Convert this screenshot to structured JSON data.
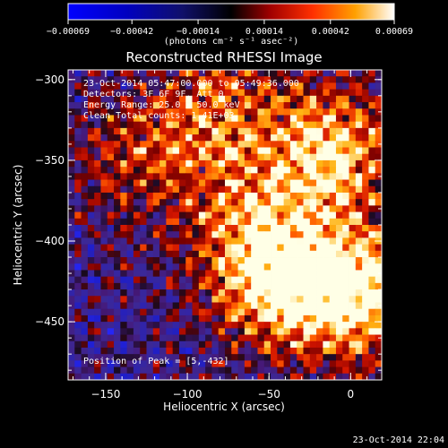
{
  "colorbar": {
    "tick_labels": [
      "-0.00069",
      "-0.00042",
      "-0.00014",
      "0.00014",
      "0.00042",
      "0.00069"
    ],
    "unit_label": "(photons cm⁻² s⁻¹ asec⁻²)",
    "range": [
      -0.00069,
      0.00069
    ]
  },
  "chart_data": {
    "type": "heatmap",
    "title": "Reconstructed RHESSI Image",
    "xlabel": "Heliocentric X (arcsec)",
    "ylabel": "Heliocentric Y (arcsec)",
    "xlim": [
      -173,
      19
    ],
    "ylim": [
      -486,
      -294
    ],
    "x_ticks": [
      -150,
      -100,
      -50,
      0
    ],
    "y_ticks": [
      -300,
      -350,
      -400,
      -450
    ],
    "x_tick_labels": [
      "−150",
      "−100",
      "−50",
      "0"
    ],
    "y_tick_labels": [
      "−300",
      "−350",
      "−400",
      "−450"
    ],
    "annotations": [
      "23-Oct-2014 05:47:00.000 to 05:49:36.000",
      "Detectors: 3F 6F 9F, Att 0",
      "Energy Range: 25.0 - 50.0 keV",
      "Clean     Total counts: 1.41E+03"
    ],
    "peak_label": "Position of Peak = [5,-432]",
    "peak": [
      5,
      -432
    ],
    "hot_regions": [
      {
        "x": -45,
        "y": -425,
        "level": 1.0
      },
      {
        "x": 5,
        "y": -432,
        "level": 1.0
      },
      {
        "x": -10,
        "y": -345,
        "level": 0.9
      },
      {
        "x": -80,
        "y": -320,
        "level": 0.6
      },
      {
        "x": -130,
        "y": -350,
        "level": 0.45
      },
      {
        "x": -60,
        "y": -385,
        "level": 0.5
      }
    ]
  },
  "footer_timestamp": "23-Oct-2014 22:04"
}
